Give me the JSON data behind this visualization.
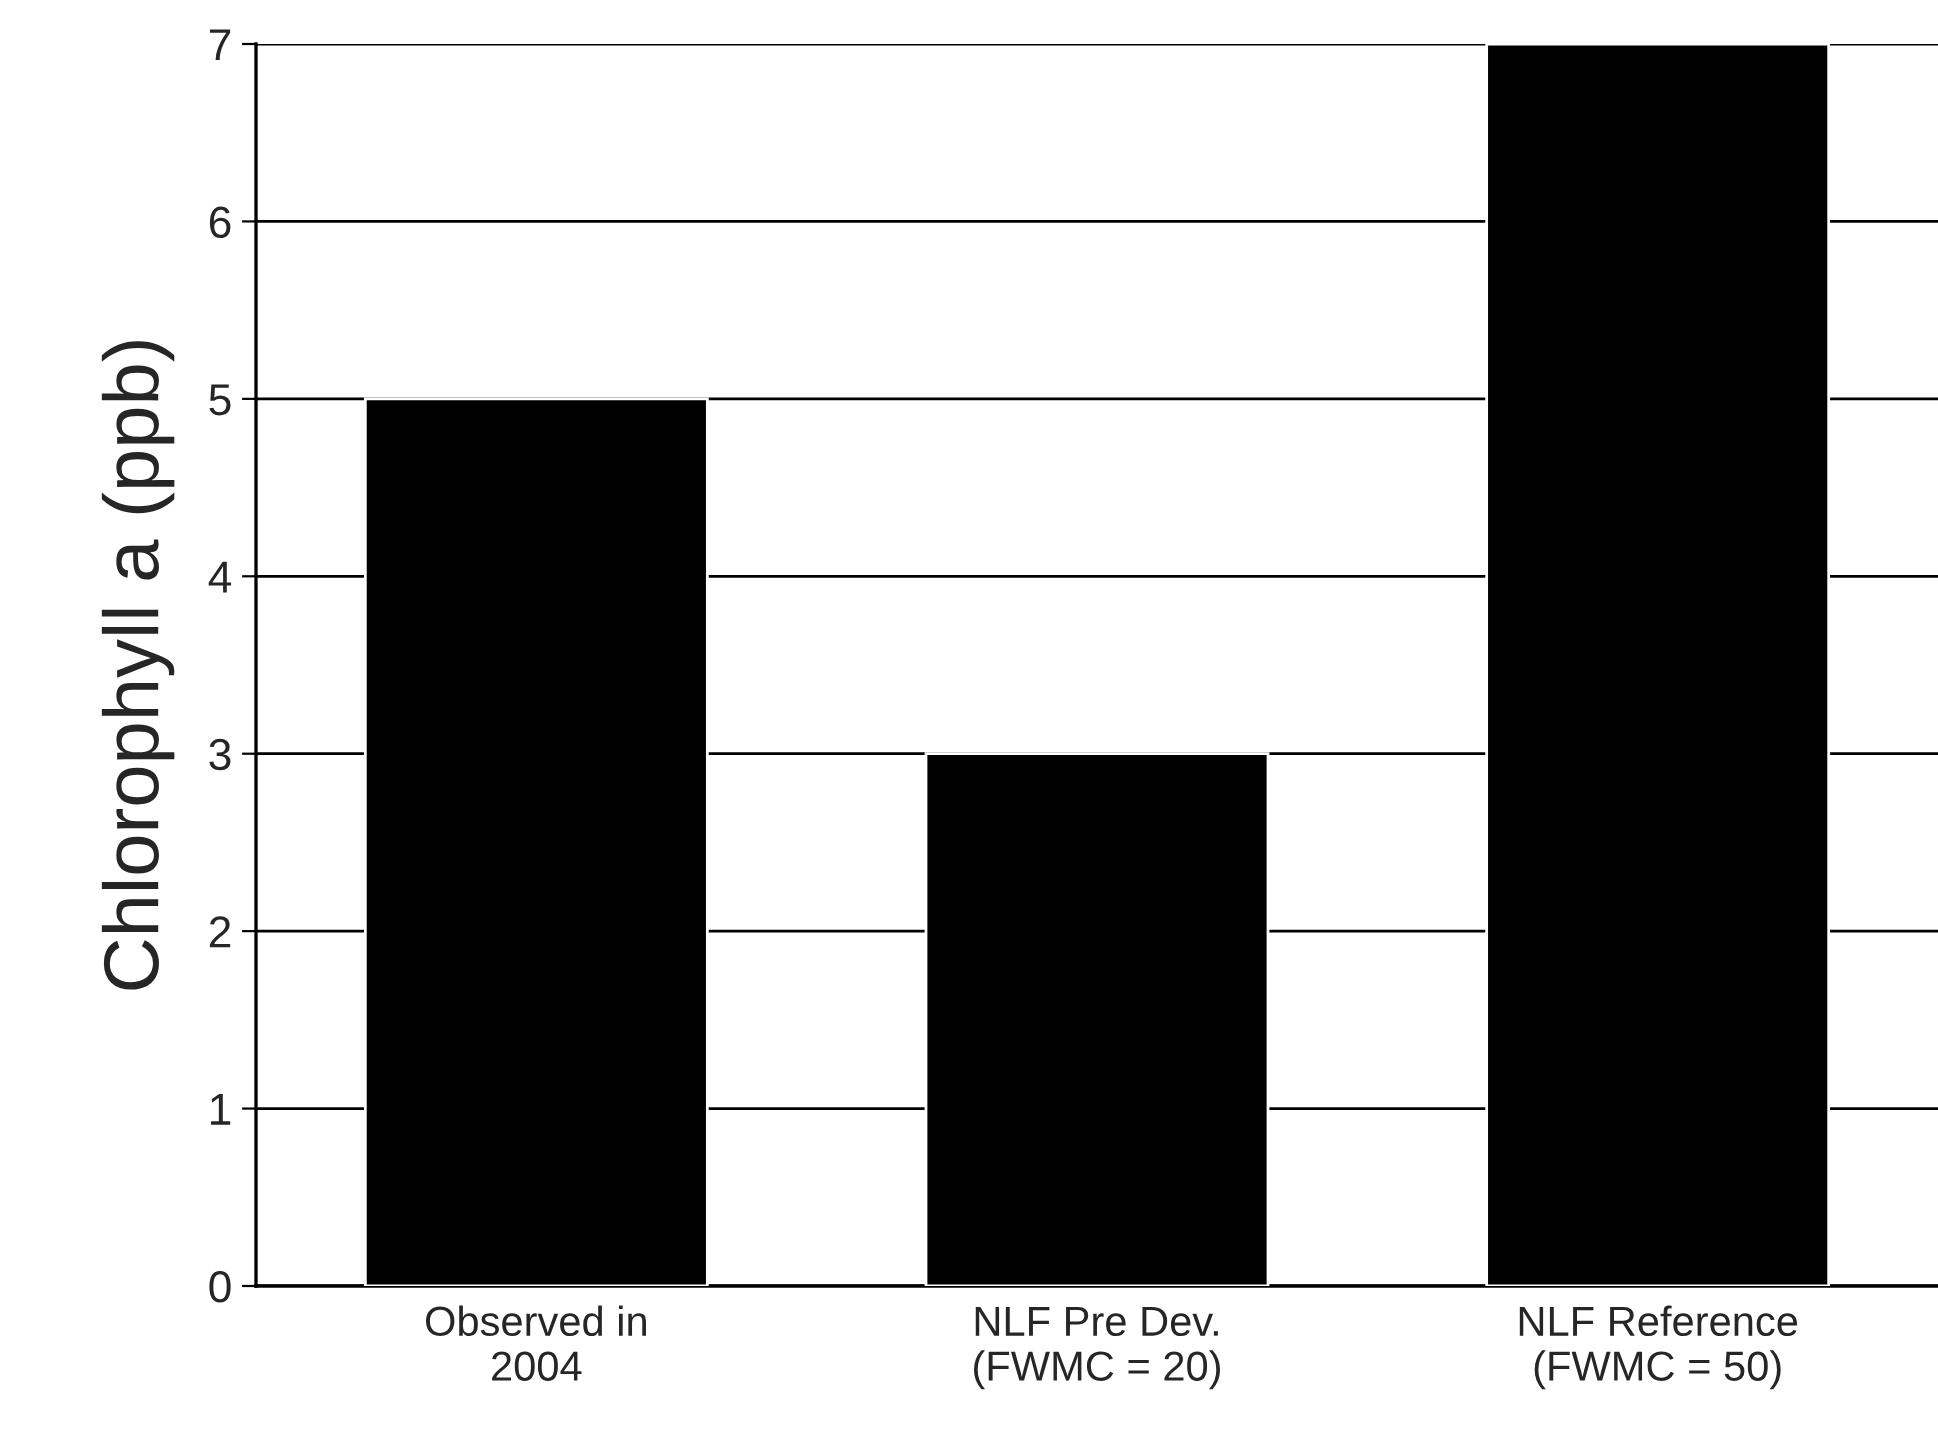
{
  "chart_data": {
    "type": "bar",
    "ylabel": "Chlorophyll a (ppb)",
    "categories": [
      "Observed in\n2004",
      "NLF Pre Dev.\n(FWMC = 20)",
      "NLF Reference\n(FWMC = 50)"
    ],
    "values": [
      5,
      3,
      7
    ],
    "color": "#000000",
    "ylim": [
      0,
      7
    ],
    "yticks": [
      0,
      1,
      2,
      3,
      4,
      5,
      6,
      7
    ],
    "grid": "y"
  }
}
